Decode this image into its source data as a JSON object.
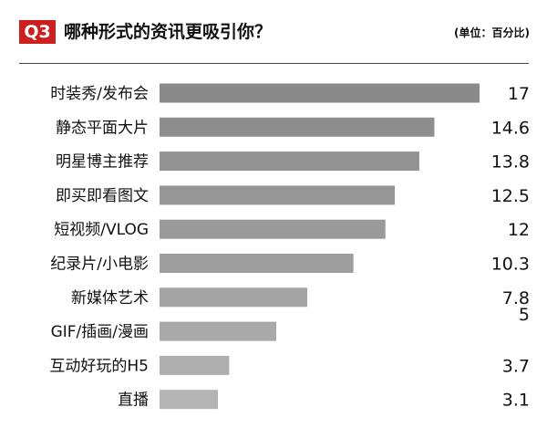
{
  "header": {
    "badge": "Q3",
    "title": "哪种形式的资讯更吸引你？",
    "unit": "(单位：百分比)",
    "badge_color": "#cc1f1f"
  },
  "chart_data": {
    "type": "bar",
    "orientation": "horizontal",
    "title": "哪种形式的资讯更吸引你？",
    "unit": "(单位：百分比)",
    "categories": [
      "时装秀/发布会",
      "静态平面大片",
      "明星博主推荐",
      "即买即看图文",
      "短视频/VLOG",
      "纪录片/小电影",
      "新媒体艺术",
      "GIF/插画/漫画",
      "互动好玩的H5",
      "直播"
    ],
    "values": [
      17,
      14.6,
      13.8,
      12.5,
      12,
      10.3,
      7.85,
      6.2,
      3.7,
      3.1
    ],
    "value_labels": [
      "17",
      "14.6",
      "13.8",
      "12.5",
      "12",
      "10.3",
      "7.8\n5",
      "",
      "3.7",
      "3.1"
    ],
    "xlim": [
      0,
      17
    ],
    "grid": false,
    "legend": "none",
    "bar_colors": [
      "#8a8a8a",
      "#8e8e8e",
      "#929292",
      "#969696",
      "#9a9a9a",
      "#9e9e9e",
      "#a4a4a4",
      "#a9a9a9",
      "#aeaeae",
      "#b4b4b4"
    ]
  }
}
